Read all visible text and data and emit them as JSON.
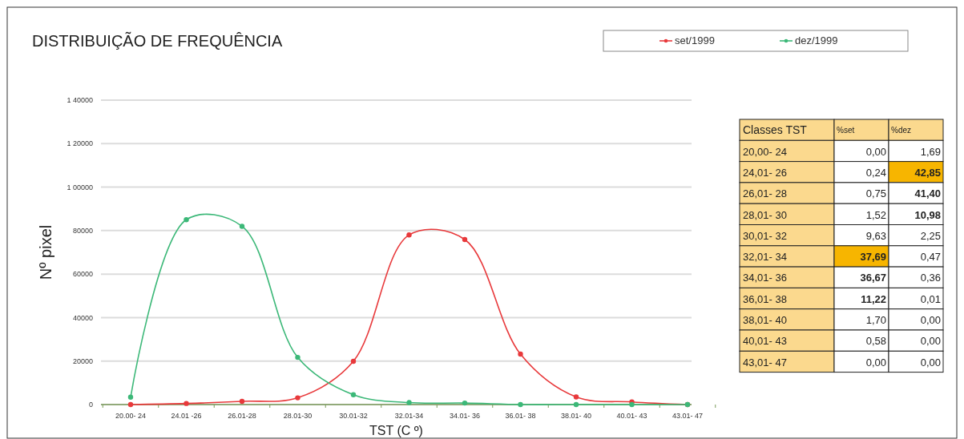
{
  "chart_data": [
    {
      "type": "line",
      "title": "DISTRIBUIÇÃO DE FREQUÊNCIA",
      "xlabel": "TST (C º)",
      "ylabel": "Nº pixel",
      "categories": [
        "20.00- 24",
        "24.01 -26",
        "26.01-28",
        "28.01-30",
        "30.01-32",
        "32.01-34",
        "34.01- 36",
        "36.01- 38",
        "38.01- 40",
        "40.01- 43",
        "43.01- 47"
      ],
      "series": [
        {
          "name": "set/1999",
          "color": "#e8393b",
          "values": [
            0,
            500,
            1500,
            3100,
            19900,
            78000,
            75900,
            23200,
            3500,
            1200,
            0
          ]
        },
        {
          "name": "dez/1999",
          "color": "#3cb878",
          "values": [
            3400,
            85000,
            82000,
            21700,
            4500,
            900,
            700,
            0,
            0,
            0,
            0
          ]
        }
      ],
      "ylim": [
        0,
        140000
      ],
      "yticks": [
        0,
        20000,
        40000,
        60000,
        80000,
        {
          "value": 100000,
          "label": "1 00000"
        },
        {
          "value": 120000,
          "label": "1 20000"
        },
        {
          "value": 140000,
          "label": "1 40000"
        }
      ],
      "grid": "y",
      "legend": "top right",
      "marker": "circle",
      "line_style": "solid"
    },
    {
      "type": "other",
      "xlabel": "Classes TST",
      "categories": [
        "20,00- 24",
        "24,01- 26",
        "26,01- 28",
        "28,01- 30",
        "30,01- 32",
        "32,01- 34",
        "34,01- 36",
        "36,01- 38",
        "38,01- 40",
        "40,01- 43",
        "43,01- 47"
      ],
      "series": [
        {
          "name": "%set",
          "values": [
            0.0,
            0.24,
            0.75,
            1.52,
            9.63,
            37.69,
            36.67,
            11.22,
            1.7,
            0.58,
            0.0
          ],
          "value_labels": [
            "0,00",
            "0,24",
            "0,75",
            "1,52",
            "9,63",
            "37,69",
            "36,67",
            "11,22",
            "1,70",
            "0,58",
            "0,00"
          ],
          "colors": [
            "#ffffff",
            "#ffffff",
            "#ffffff",
            "#ffffff",
            "#ffffff",
            "#f7b500",
            "#ffffff",
            "#ffffff",
            "#ffffff",
            "#ffffff",
            "#ffffff"
          ]
        },
        {
          "name": "%dez",
          "values": [
            1.69,
            42.85,
            41.4,
            10.98,
            2.25,
            0.47,
            0.36,
            0.01,
            0.0,
            0.0,
            0.0
          ],
          "value_labels": [
            "1,69",
            "42,85",
            "41,40",
            "10,98",
            "2,25",
            "0,47",
            "0,36",
            "0,01",
            "0,00",
            "0,00",
            "0,00"
          ],
          "colors": [
            "#ffffff",
            "#f7b500",
            "#ffffff",
            "#ffffff",
            "#ffffff",
            "#ffffff",
            "#ffffff",
            "#ffffff",
            "#ffffff",
            "#ffffff",
            "#ffffff"
          ]
        }
      ],
      "color": "#fbd98e"
    }
  ]
}
